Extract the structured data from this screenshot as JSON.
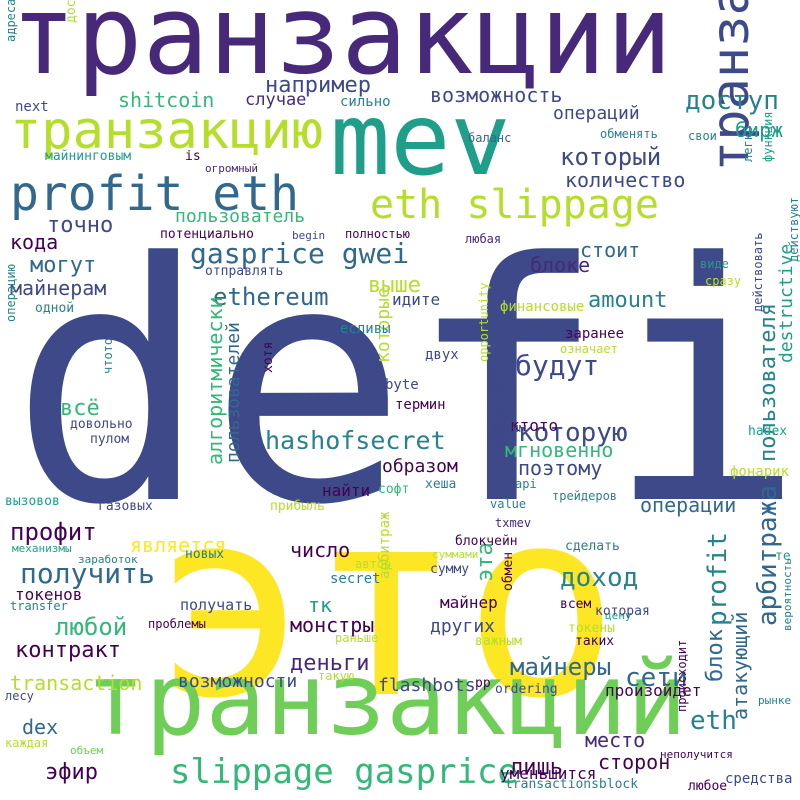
{
  "palette": {
    "dark_purple": "#440154",
    "purple": "#482878",
    "indigo": "#3e4989",
    "navy": "#31688e",
    "teal": "#26828e",
    "green_teal": "#1f9e89",
    "green": "#35b779",
    "light_green": "#6ece58",
    "lime": "#b5de2b",
    "yellow": "#fde725"
  },
  "words": [
    {
      "text": "defi",
      "color": "#3e4989",
      "rotated": false
    },
    {
      "text": "это",
      "color": "#fde725",
      "rotated": false
    },
    {
      "text": "транзакции",
      "color": "#482878",
      "rotated": false
    },
    {
      "text": "транзакций",
      "color": "#6ece58",
      "rotated": false
    },
    {
      "text": "mev",
      "color": "#1f9e89",
      "rotated": false
    },
    {
      "text": "транзакцию",
      "color": "#b5de2b",
      "rotated": false
    },
    {
      "text": "транзакция",
      "color": "#3e4989",
      "rotated": true
    },
    {
      "text": "profit eth",
      "color": "#31688e",
      "rotated": false
    },
    {
      "text": "eth slippage",
      "color": "#b5de2b",
      "rotated": false
    },
    {
      "text": "slippage gasprice",
      "color": "#35b779",
      "rotated": false
    },
    {
      "text": "gasprice gwei",
      "color": "#31688e",
      "rotated": false
    },
    {
      "text": "hashofsecret",
      "color": "#26828e",
      "rotated": false
    },
    {
      "text": "ethereum",
      "color": "#31688e",
      "rotated": false
    },
    {
      "text": "например",
      "color": "#3e4989",
      "rotated": false
    },
    {
      "text": "возможность",
      "color": "#3e4989",
      "rotated": false
    },
    {
      "text": "доступ",
      "color": "#26828e",
      "rotated": false
    },
    {
      "text": "shitcoin",
      "color": "#35b779",
      "rotated": false
    },
    {
      "text": "случае",
      "color": "#482878",
      "rotated": false
    },
    {
      "text": "операций",
      "color": "#3e4989",
      "rotated": false
    },
    {
      "text": "который",
      "color": "#3e4989",
      "rotated": false
    },
    {
      "text": "количество",
      "color": "#3e4989",
      "rotated": false
    },
    {
      "text": "бирж",
      "color": "#1f9e89",
      "rotated": false
    },
    {
      "text": "пользователь",
      "color": "#35b779",
      "rotated": false
    },
    {
      "text": "точно",
      "color": "#3e4989",
      "rotated": false
    },
    {
      "text": "кода",
      "color": "#440154",
      "rotated": false
    },
    {
      "text": "могут",
      "color": "#31688e",
      "rotated": false
    },
    {
      "text": "майнерам",
      "color": "#3e4989",
      "rotated": false
    },
    {
      "text": "стоит",
      "color": "#31688e",
      "rotated": false
    },
    {
      "text": "блоке",
      "color": "#482878",
      "rotated": false
    },
    {
      "text": "выше",
      "color": "#b5de2b",
      "rotated": false
    },
    {
      "text": "amount",
      "color": "#26828e",
      "rotated": false
    },
    {
      "text": "будут",
      "color": "#3e4989",
      "rotated": false
    },
    {
      "text": "которую",
      "color": "#3e4989",
      "rotated": false
    },
    {
      "text": "мгновенно",
      "color": "#35b779",
      "rotated": false
    },
    {
      "text": "поэтому",
      "color": "#3e4989",
      "rotated": false
    },
    {
      "text": "образом",
      "color": "#440154",
      "rotated": false
    },
    {
      "text": "найти",
      "color": "#440154",
      "rotated": false
    },
    {
      "text": "всё",
      "color": "#35b779",
      "rotated": false
    },
    {
      "text": "алгоритмически",
      "color": "#35b779",
      "rotated": true
    },
    {
      "text": "пользователей",
      "color": "#31688e",
      "rotated": true
    },
    {
      "text": "которые",
      "color": "#b5de2b",
      "rotated": true
    },
    {
      "text": "просто",
      "color": "#3e4989",
      "rotated": true
    },
    {
      "text": "пользователя",
      "color": "#26828e",
      "rotated": true
    },
    {
      "text": "destructive",
      "color": "#1f9e89",
      "rotated": true
    },
    {
      "text": "арбитража",
      "color": "#31688e",
      "rotated": true
    },
    {
      "text": "профит",
      "color": "#440154",
      "rotated": false
    },
    {
      "text": "получить",
      "color": "#31688e",
      "rotated": false
    },
    {
      "text": "является",
      "color": "#fde725",
      "rotated": false
    },
    {
      "text": "число",
      "color": "#440154",
      "rotated": false
    },
    {
      "text": "доход",
      "color": "#26828e",
      "rotated": false
    },
    {
      "text": "операции",
      "color": "#31688e",
      "rotated": false
    },
    {
      "text": "эта",
      "color": "#35b779",
      "rotated": true
    },
    {
      "text": "profit",
      "color": "#26828e",
      "rotated": true
    },
    {
      "text": "блок",
      "color": "#31688e",
      "rotated": true
    },
    {
      "text": "атакующий",
      "color": "#31688e",
      "rotated": true
    },
    {
      "text": "любой",
      "color": "#35b779",
      "rotated": false
    },
    {
      "text": "контракт",
      "color": "#440154",
      "rotated": false
    },
    {
      "text": "тк",
      "color": "#1f9e89",
      "rotated": false
    },
    {
      "text": "монстры",
      "color": "#440154",
      "rotated": false
    },
    {
      "text": "других",
      "color": "#3e4989",
      "rotated": false
    },
    {
      "text": "деньги",
      "color": "#482878",
      "rotated": false
    },
    {
      "text": "майнеры",
      "color": "#31688e",
      "rotated": false
    },
    {
      "text": "сети",
      "color": "#31688e",
      "rotated": false
    },
    {
      "text": "transaction",
      "color": "#b5de2b",
      "rotated": false
    },
    {
      "text": "возможности",
      "color": "#3e4989",
      "rotated": false
    },
    {
      "text": "flashbots",
      "color": "#3e4989",
      "rotated": false
    },
    {
      "text": "eth",
      "color": "#26828e",
      "rotated": false
    },
    {
      "text": "место",
      "color": "#482878",
      "rotated": false
    },
    {
      "text": "сторон",
      "color": "#440154",
      "rotated": false
    },
    {
      "text": "лишь",
      "color": "#440154",
      "rotated": false
    },
    {
      "text": "эфир",
      "color": "#440154",
      "rotated": false
    },
    {
      "text": "dex",
      "color": "#31688e",
      "rotated": false
    },
    {
      "text": "уменьшится",
      "color": "#440154",
      "rotated": false
    },
    {
      "text": "next",
      "color": "#3e4989",
      "rotated": false
    },
    {
      "text": "майнинговым",
      "color": "#1f9e89",
      "rotated": false
    },
    {
      "text": "is",
      "color": "#440154",
      "rotated": false
    },
    {
      "text": "огромный",
      "color": "#482878",
      "rotated": false
    },
    {
      "text": "сильно",
      "color": "#26828e",
      "rotated": false
    },
    {
      "text": "баланс",
      "color": "#31688e",
      "rotated": false
    },
    {
      "text": "обменять",
      "color": "#26828e",
      "rotated": false
    },
    {
      "text": "свои",
      "color": "#26828e",
      "rotated": false
    },
    {
      "text": "потенциально",
      "color": "#440154",
      "rotated": false
    },
    {
      "text": "begin",
      "color": "#3e4989",
      "rotated": false
    },
    {
      "text": "полностью",
      "color": "#440154",
      "rotated": false
    },
    {
      "text": "любая",
      "color": "#482878",
      "rotated": false
    },
    {
      "text": "отправлять",
      "color": "#3e4989",
      "rotated": false
    },
    {
      "text": "виде",
      "color": "#1f9e89",
      "rotated": false
    },
    {
      "text": "сразу",
      "color": "#b5de2b",
      "rotated": false
    },
    {
      "text": "одной",
      "color": "#26828e",
      "rotated": false
    },
    {
      "text": "идите",
      "color": "#3e4989",
      "rotated": false
    },
    {
      "text": "финансовые",
      "color": "#b5de2b",
      "rotated": false
    },
    {
      "text": "есливы",
      "color": "#26828e",
      "rotated": false
    },
    {
      "text": "заранее",
      "color": "#440154",
      "rotated": false
    },
    {
      "text": "означает",
      "color": "#b5de2b",
      "rotated": false
    },
    {
      "text": "двух",
      "color": "#3e4989",
      "rotated": false
    },
    {
      "text": "byte",
      "color": "#3e4989",
      "rotated": false
    },
    {
      "text": "термин",
      "color": "#440154",
      "rotated": false
    },
    {
      "text": "ктото",
      "color": "#440154",
      "rotated": false
    },
    {
      "text": "таким",
      "color": "#3e4989",
      "rotated": false
    },
    {
      "text": "hadex",
      "color": "#1f9e89",
      "rotated": false
    },
    {
      "text": "фонарик",
      "color": "#b5de2b",
      "rotated": false
    },
    {
      "text": "пулом",
      "color": "#3e4989",
      "rotated": false
    },
    {
      "text": "довольно",
      "color": "#3e4989",
      "rotated": false
    },
    {
      "text": "софт",
      "color": "#35b779",
      "rotated": false
    },
    {
      "text": "хеша",
      "color": "#26828e",
      "rotated": false
    },
    {
      "text": "api",
      "color": "#26828e",
      "rotated": false
    },
    {
      "text": "трейдеров",
      "color": "#26828e",
      "rotated": false
    },
    {
      "text": "вызовов",
      "color": "#1f9e89",
      "rotated": false
    },
    {
      "text": "газовых",
      "color": "#3e4989",
      "rotated": false
    },
    {
      "text": "прибыль",
      "color": "#b5de2b",
      "rotated": false
    },
    {
      "text": "value",
      "color": "#26828e",
      "rotated": false
    },
    {
      "text": "txmev",
      "color": "#482878",
      "rotated": false
    },
    {
      "text": "механизмы",
      "color": "#1f9e89",
      "rotated": false
    },
    {
      "text": "новых",
      "color": "#26828e",
      "rotated": false
    },
    {
      "text": "блокчейн",
      "color": "#440154",
      "rotated": false
    },
    {
      "text": "суммами",
      "color": "#b5de2b",
      "rotated": false
    },
    {
      "text": "сделать",
      "color": "#26828e",
      "rotated": false
    },
    {
      "text": "заработок",
      "color": "#26828e",
      "rotated": false
    },
    {
      "text": "автор",
      "color": "#b5de2b",
      "rotated": false
    },
    {
      "text": "сумму",
      "color": "#3e4989",
      "rotated": false
    },
    {
      "text": "токенов",
      "color": "#440154",
      "rotated": false
    },
    {
      "text": "secret",
      "color": "#26828e",
      "rotated": false
    },
    {
      "text": "transfer",
      "color": "#26828e",
      "rotated": false
    },
    {
      "text": "получать",
      "color": "#3e4989",
      "rotated": false
    },
    {
      "text": "майнер",
      "color": "#440154",
      "rotated": false
    },
    {
      "text": "всем",
      "color": "#440154",
      "rotated": false
    },
    {
      "text": "цену",
      "color": "#1f9e89",
      "rotated": false
    },
    {
      "text": "проблемы",
      "color": "#440154",
      "rotated": false
    },
    {
      "text": "раньше",
      "color": "#b5de2b",
      "rotated": false
    },
    {
      "text": "токены",
      "color": "#b5de2b",
      "rotated": false
    },
    {
      "text": "таких",
      "color": "#440154",
      "rotated": false
    },
    {
      "text": "важным",
      "color": "#b5de2b",
      "rotated": false
    },
    {
      "text": "такую",
      "color": "#b5de2b",
      "rotated": false
    },
    {
      "text": "pp",
      "color": "#440154",
      "rotated": false
    },
    {
      "text": "ordering",
      "color": "#3e4989",
      "rotated": false
    },
    {
      "text": "произойдет",
      "color": "#440154",
      "rotated": false
    },
    {
      "text": "лесу",
      "color": "#3e4989",
      "rotated": false
    },
    {
      "text": "каждая",
      "color": "#b5de2b",
      "rotated": false
    },
    {
      "text": "объем",
      "color": "#6ece58",
      "rotated": false
    },
    {
      "text": "неполучится",
      "color": "#440154",
      "rotated": false
    },
    {
      "text": "средства",
      "color": "#3e4989",
      "rotated": false
    },
    {
      "text": "transactionsblock",
      "color": "#26828e",
      "rotated": false
    },
    {
      "text": "любое",
      "color": "#440154",
      "rotated": false
    },
    {
      "text": "адреса",
      "color": "#26828e",
      "rotated": true
    },
    {
      "text": "достаточно",
      "color": "#b5de2b",
      "rotated": true
    },
    {
      "text": "легко",
      "color": "#26828e",
      "rotated": true
    },
    {
      "text": "функция",
      "color": "#1f9e89",
      "rotated": true
    },
    {
      "text": "действовать",
      "color": "#3e4989",
      "rotated": true
    },
    {
      "text": "действуют",
      "color": "#26828e",
      "rotated": true
    },
    {
      "text": "операцию",
      "color": "#26828e",
      "rotated": true
    },
    {
      "text": "чтото",
      "color": "#26828e",
      "rotated": true
    },
    {
      "text": "хотя",
      "color": "#440154",
      "rotated": true
    },
    {
      "text": "opportunity",
      "color": "#b5de2b",
      "rotated": true
    },
    {
      "text": "которая",
      "color": "#3e4989",
      "rotated": false
    },
    {
      "text": "арбитраж",
      "color": "#b5de2b",
      "rotated": true
    },
    {
      "text": "обмен",
      "color": "#440154",
      "rotated": true
    },
    {
      "text": "происходит",
      "color": "#440154",
      "rotated": true
    },
    {
      "text": "те",
      "color": "#1f9e89",
      "rotated": false
    },
    {
      "text": "вероятность",
      "color": "#26828e",
      "rotated": true
    },
    {
      "text": "рынке",
      "color": "#26828e",
      "rotated": false
    }
  ]
}
